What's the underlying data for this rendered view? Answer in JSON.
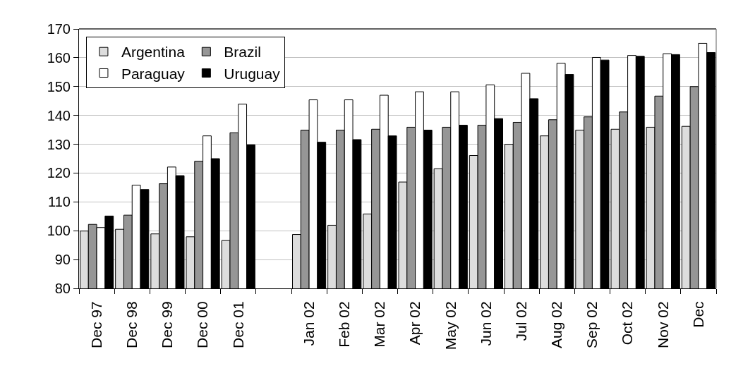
{
  "chart_data": {
    "type": "bar",
    "categories": [
      "Dec 97",
      "Dec 98",
      "Dec 99",
      "Dec 00",
      "Dec 01",
      null,
      "Jan 02",
      "Feb 02",
      "Mar 02",
      "Apr 02",
      "May 02",
      "Jun 02",
      "Jul 02",
      "Aug 02",
      "Sep 02",
      "Oct 02",
      "Nov 02",
      "Dec"
    ],
    "series": [
      {
        "name": "Argentina",
        "color": "#dddddd",
        "values": [
          99.9,
          100.5,
          98.9,
          97.9,
          96.6,
          null,
          98.7,
          101.9,
          105.8,
          116.9,
          121.5,
          126.1,
          130.0,
          132.9,
          134.9,
          135.2,
          135.9,
          136.2
        ]
      },
      {
        "name": "Brazil",
        "color": "#969696",
        "values": [
          102.2,
          105.4,
          116.3,
          124.1,
          134.0,
          null,
          134.9,
          134.9,
          135.2,
          135.9,
          135.9,
          136.6,
          137.6,
          138.5,
          139.5,
          141.2,
          146.7,
          150.0
        ]
      },
      {
        "name": "Paraguay",
        "color": "#ffffff",
        "values": [
          101.1,
          115.8,
          122.1,
          132.9,
          143.9,
          null,
          145.4,
          145.4,
          147.0,
          148.2,
          148.2,
          150.6,
          154.6,
          158.1,
          160.1,
          160.8,
          161.4,
          165.0
        ]
      },
      {
        "name": "Uruguay",
        "color": "#000000",
        "values": [
          105.1,
          114.3,
          119.1,
          125.0,
          129.8,
          null,
          130.7,
          131.6,
          132.9,
          134.9,
          136.6,
          138.9,
          145.8,
          154.2,
          159.2,
          160.5,
          161.1,
          161.8
        ]
      }
    ],
    "ylim": [
      80,
      170
    ],
    "yticks": [
      80,
      90,
      100,
      110,
      120,
      130,
      140,
      150,
      160,
      170
    ],
    "grid": "y",
    "legend": "top left"
  }
}
